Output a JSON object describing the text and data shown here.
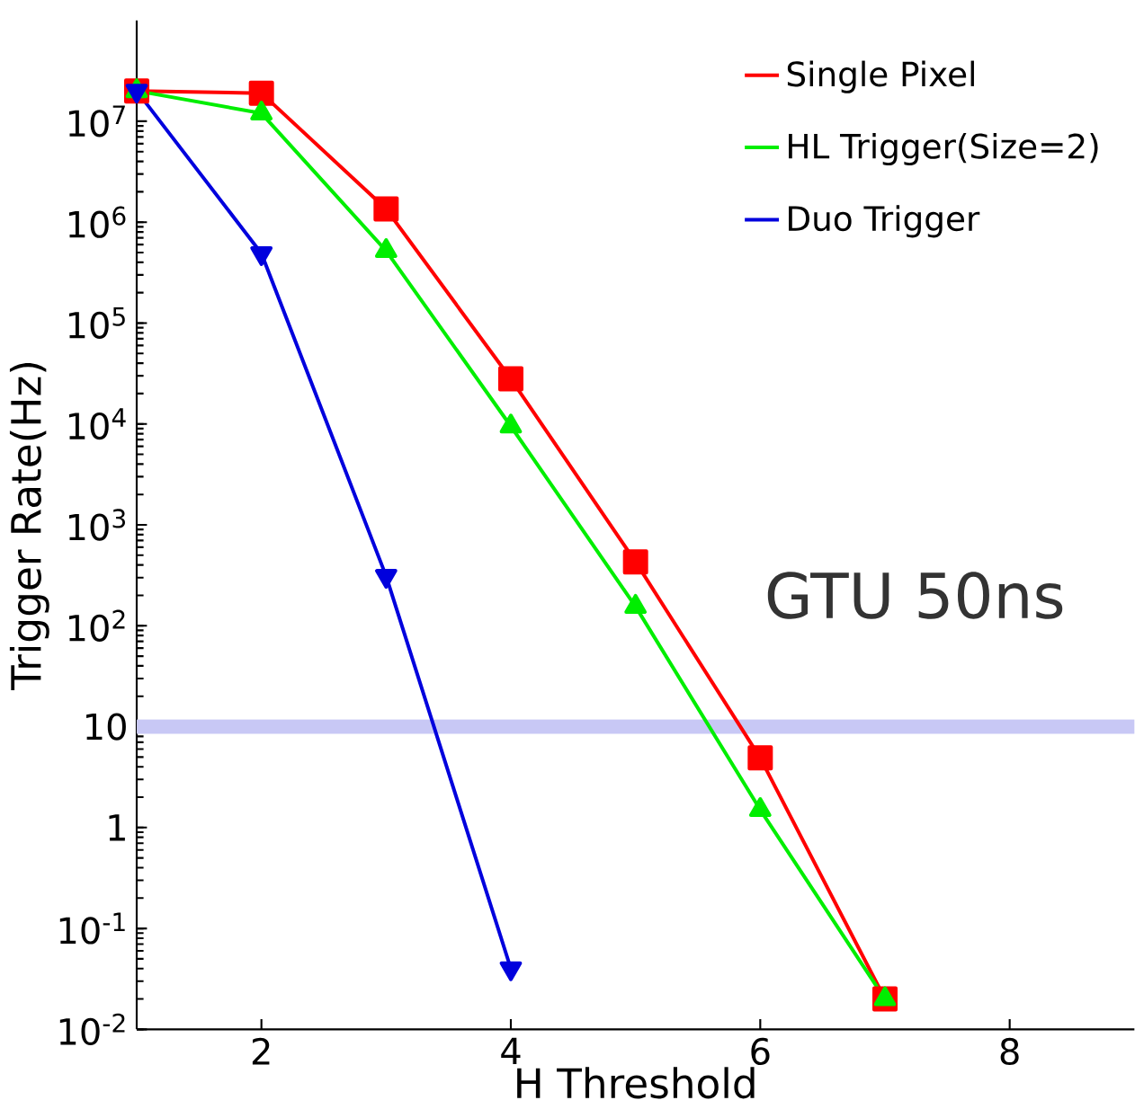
{
  "chart_data": {
    "type": "line",
    "xlabel": "H Threshold",
    "ylabel": "Trigger Rate(Hz)",
    "log": "y",
    "xlim": [
      1,
      9
    ],
    "xticks": [
      2,
      4,
      6,
      8
    ],
    "ylim": [
      0.01,
      100000000
    ],
    "yticks": [
      {
        "value": 0.01,
        "label": "10$^{-2}$"
      },
      {
        "value": 0.1,
        "label": "10$^{-1}$"
      },
      1,
      10,
      {
        "value": 100,
        "label": "10$^{2}$"
      },
      {
        "value": 1000,
        "label": "10$^{3}$"
      },
      {
        "value": 10000,
        "label": "10$^{4}$"
      },
      {
        "value": 100000,
        "label": "10$^{5}$"
      },
      {
        "value": 1000000,
        "label": "10$^{6}$"
      },
      {
        "value": 10000000,
        "label": "10$^{7}$"
      }
    ],
    "x": [
      1,
      2,
      3,
      4,
      5,
      6,
      7
    ],
    "series": [
      {
        "name": "Single Pixel",
        "color": "#ff0000",
        "marker": "square",
        "values": [
          20000000,
          19000000,
          1350000,
          28000,
          430,
          4.9,
          0.02
        ]
      },
      {
        "name": "HL Trigger(Size=2)",
        "color": "#00ee00",
        "marker": "triangle",
        "values": [
          20000000,
          12000000,
          520000,
          9500,
          155,
          1.5,
          0.02
        ]
      },
      {
        "name": "Duo Trigger",
        "color": "#0000dd",
        "marker": "triangle_down",
        "x": [
          1,
          2,
          3,
          4
        ],
        "values": [
          20000000,
          490000,
          310,
          0.04
        ]
      }
    ],
    "ref_lines": [
      {
        "axis": "y",
        "value": 10,
        "color": "#c8c8f5"
      }
    ],
    "annotations": [
      "GTU 50ns"
    ],
    "legend": "top right",
    "grid": false,
    "line_style": "solid"
  }
}
